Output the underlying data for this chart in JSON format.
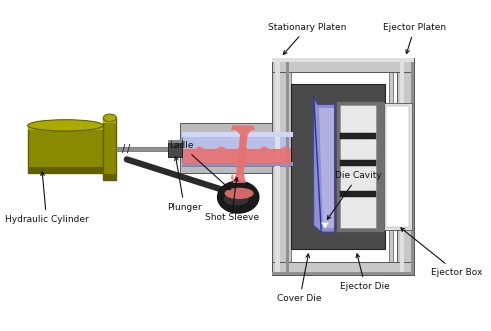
{
  "bg_color": "#ffffff",
  "labels": {
    "stationary_platen": "Stationary Platen",
    "ejector_platen": "Ejector Platen",
    "ladle": "Ladle",
    "die_cavity": "Die Cavity",
    "hydraulic_cylinder": "Hydraulic Cylinder",
    "plunger": "Plunger",
    "shot_sleeve": "Shot Sleeve",
    "cover_die": "Cover Die",
    "ejector_die": "Ejector Die",
    "ejector_box": "Ejector Box"
  },
  "colors": {
    "dark_gray": "#4a4a4a",
    "medium_gray": "#888888",
    "light_gray": "#bbbbbb",
    "silver": "#c8c8c8",
    "silver_light": "#e0e0e0",
    "silver_dark": "#909090",
    "olive": "#8a8a00",
    "olive_light": "#aaaa00",
    "olive_dark": "#606000",
    "shot_sleeve_blue": "#b8c0e8",
    "shot_sleeve_blue_light": "#d0d8f8",
    "die_blue": "#9090cc",
    "die_blue_light": "#b0b0e0",
    "molten_pink": "#e87070",
    "molten_dark": "#cc4444",
    "ladle_black": "#1a1a1a",
    "ladle_gray": "#2a2a2a",
    "black": "#000000",
    "white": "#ffffff",
    "near_black": "#111111"
  },
  "layout": {
    "fig_w": 4.91,
    "fig_h": 3.31,
    "dpi": 100,
    "xlim": [
      0,
      491
    ],
    "ylim": [
      0,
      331
    ]
  }
}
